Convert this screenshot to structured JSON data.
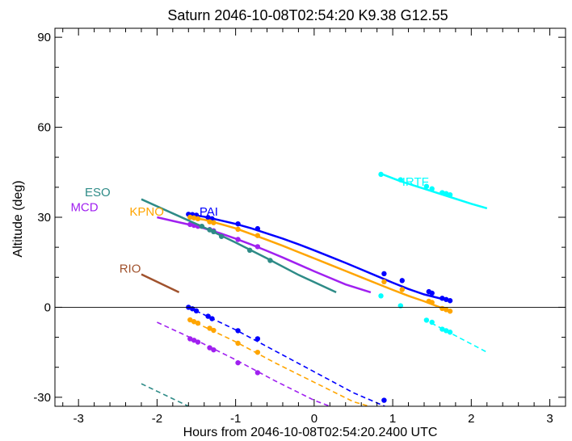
{
  "chart_data": {
    "type": "line",
    "title": "Saturn 2046-10-08T02:54:20  K9.38  G12.55",
    "xlabel": "Hours from 2046-10-08T02:54:20.2400 UTC",
    "ylabel": "Altitude (deg)",
    "xlim": [
      -3.3,
      3.2
    ],
    "ylim": [
      -33,
      93
    ],
    "xticks": [
      "-3",
      "-2",
      "-1",
      "0",
      "1",
      "2",
      "3"
    ],
    "xtick_values": [
      -3,
      -2,
      -1,
      0,
      1,
      2,
      3
    ],
    "yticks": [
      "-30",
      "0",
      "30",
      "60",
      "90"
    ],
    "ytick_values": [
      -30,
      0,
      30,
      60,
      90
    ],
    "horizon_line": 0,
    "colors": {
      "PAI": "#0000ff",
      "KPNO": "#ffa500",
      "MCD": "#a020f0",
      "ESO": "#2e8b87",
      "IRTF": "#00ffff",
      "RIO": "#a0522d"
    },
    "series": [
      {
        "name": "PAI",
        "label_pos": [
          -1.46,
          30.5
        ],
        "visible": {
          "x": [
            -1.6,
            -1.4,
            -1.2,
            -1.0,
            -0.8,
            -0.6,
            -0.4,
            -0.2,
            0.0,
            0.2,
            0.4,
            0.6,
            0.8,
            1.0,
            1.2,
            1.4,
            1.75
          ],
          "y": [
            31.0,
            30.2,
            29.0,
            27.8,
            26.3,
            24.6,
            22.9,
            21.0,
            19.0,
            16.9,
            14.8,
            12.6,
            10.4,
            8.2,
            6.1,
            4.3,
            2.0
          ]
        },
        "visible_dots": {
          "x": [
            -1.6,
            -1.55,
            -1.5,
            -1.35,
            -1.3,
            -0.97,
            -0.72,
            0.89,
            1.12,
            1.46,
            1.5,
            1.63,
            1.68,
            1.73
          ],
          "y": [
            31.0,
            30.9,
            30.7,
            29.9,
            29.5,
            27.8,
            26.2,
            11.2,
            8.9,
            5.2,
            4.7,
            3.0,
            2.6,
            2.2
          ]
        },
        "dashed": {
          "x": [
            -1.6,
            -1.0,
            -0.5,
            0.0,
            0.5,
            0.9
          ],
          "y": [
            0.0,
            -7.5,
            -14.5,
            -21.5,
            -28.5,
            -33.0
          ]
        },
        "dashed_dots": {
          "x": [
            -1.6,
            -1.55,
            -1.5,
            -1.35,
            -1.3,
            -0.97,
            -0.72,
            0.89
          ],
          "y": [
            0.0,
            -0.5,
            -1.2,
            -3.0,
            -3.8,
            -7.8,
            -10.5,
            -31.0
          ]
        }
      },
      {
        "name": "KPNO",
        "label_pos": [
          -2.35,
          30.5
        ],
        "visible": {
          "x": [
            -1.6,
            -1.4,
            -1.2,
            -1.0,
            -0.8,
            -0.6,
            -0.4,
            -0.2,
            0.0,
            0.2,
            0.4,
            0.6,
            0.8,
            1.0,
            1.2,
            1.4,
            1.75
          ],
          "y": [
            30.0,
            29.2,
            27.8,
            26.3,
            24.4,
            22.5,
            20.5,
            18.4,
            16.3,
            14.2,
            12.1,
            10.0,
            7.9,
            5.8,
            3.8,
            2.0,
            -1.5
          ]
        },
        "visible_dots": {
          "x": [
            -1.58,
            -1.53,
            -1.48,
            -1.33,
            -1.28,
            -0.97,
            -0.72,
            0.89,
            1.12,
            1.46,
            1.5,
            1.63,
            1.68,
            1.73
          ],
          "y": [
            30.0,
            29.8,
            29.5,
            28.5,
            28.2,
            26.0,
            23.9,
            8.5,
            5.9,
            2.0,
            1.6,
            -0.4,
            -0.8,
            -1.3
          ]
        },
        "dashed": {
          "x": [
            -1.6,
            -1.0,
            -0.5,
            0.0,
            0.5,
            0.7
          ],
          "y": [
            -4.0,
            -11.5,
            -18.5,
            -25.0,
            -31.5,
            -33.0
          ]
        },
        "dashed_dots": {
          "x": [
            -1.58,
            -1.53,
            -1.48,
            -1.33,
            -1.28,
            -0.97,
            -0.72
          ],
          "y": [
            -4.2,
            -4.8,
            -5.3,
            -7.0,
            -7.7,
            -12.0,
            -15.0
          ]
        }
      },
      {
        "name": "MCD",
        "label_pos": [
          -3.1,
          32.0
        ],
        "visible": {
          "x": [
            -2.0,
            -1.8,
            -1.6,
            -1.4,
            -1.2,
            -1.0,
            -0.8,
            -0.6,
            -0.4,
            -0.2,
            0.0,
            0.2,
            0.4,
            0.72
          ],
          "y": [
            30.0,
            28.8,
            27.6,
            26.3,
            24.7,
            22.9,
            20.9,
            18.8,
            16.6,
            14.3,
            12.0,
            9.8,
            7.6,
            5.0
          ]
        },
        "visible_dots": {
          "x": [
            -1.58,
            -1.53,
            -1.48,
            -1.33,
            -1.28,
            -0.97,
            -0.72
          ],
          "y": [
            27.6,
            27.3,
            27.0,
            25.9,
            25.5,
            22.6,
            20.2
          ]
        },
        "dashed": {
          "x": [
            -2.0,
            -1.5,
            -1.0,
            -0.5,
            0.0,
            0.2
          ],
          "y": [
            -5.0,
            -11.0,
            -17.5,
            -24.5,
            -31.0,
            -33.0
          ]
        },
        "dashed_dots": {
          "x": [
            -1.58,
            -1.53,
            -1.48,
            -1.33,
            -1.28,
            -0.97,
            -0.72
          ],
          "y": [
            -10.5,
            -11.0,
            -11.6,
            -13.5,
            -14.2,
            -18.5,
            -21.8
          ]
        }
      },
      {
        "name": "ESO",
        "label_pos": [
          -2.92,
          37.0
        ],
        "visible": {
          "x": [
            -2.2,
            -1.8,
            -1.4,
            -1.0,
            -0.6,
            -0.2,
            0.28
          ],
          "y": [
            36.0,
            31.3,
            26.6,
            21.6,
            16.3,
            10.8,
            5.0
          ]
        },
        "visible_dots": {
          "x": [
            -1.43,
            -1.33,
            -1.28,
            -1.18,
            -0.82,
            -0.56
          ],
          "y": [
            27.0,
            25.8,
            25.2,
            23.6,
            19.0,
            15.6
          ]
        },
        "dashed": {
          "x": [
            -2.2,
            -1.6
          ],
          "y": [
            -25.5,
            -33.0
          ]
        },
        "dashed_dots": {
          "x": [],
          "y": []
        }
      },
      {
        "name": "IRTF",
        "label_pos": [
          1.12,
          40.5
        ],
        "visible": {
          "x": [
            0.85,
            1.1,
            1.4,
            1.7,
            2.0,
            2.2
          ],
          "y": [
            44.5,
            42.0,
            39.5,
            37.0,
            34.5,
            33.0
          ]
        },
        "visible_dots": {
          "x": [
            0.85,
            1.1,
            1.43,
            1.5,
            1.63,
            1.68,
            1.73
          ],
          "y": [
            44.3,
            42.5,
            40.3,
            39.5,
            38.2,
            37.9,
            37.5
          ]
        },
        "dashed": {
          "x": [
            1.4,
            1.8,
            2.2
          ],
          "y": [
            -4.0,
            -9.5,
            -15.0
          ]
        },
        "dashed_dots": {
          "x": [
            0.85,
            1.1,
            1.43,
            1.5,
            1.63,
            1.68,
            1.73
          ],
          "y": [
            3.8,
            0.5,
            -4.3,
            -5.0,
            -7.3,
            -7.8,
            -8.3
          ]
        }
      },
      {
        "name": "RIO",
        "label_pos": [
          -2.48,
          11.5
        ],
        "visible": {
          "x": [
            -2.2,
            -1.72
          ],
          "y": [
            11.0,
            5.0
          ]
        },
        "visible_dots": {
          "x": [],
          "y": []
        },
        "dashed": {
          "x": [],
          "y": []
        },
        "dashed_dots": {
          "x": [],
          "y": []
        }
      }
    ]
  }
}
